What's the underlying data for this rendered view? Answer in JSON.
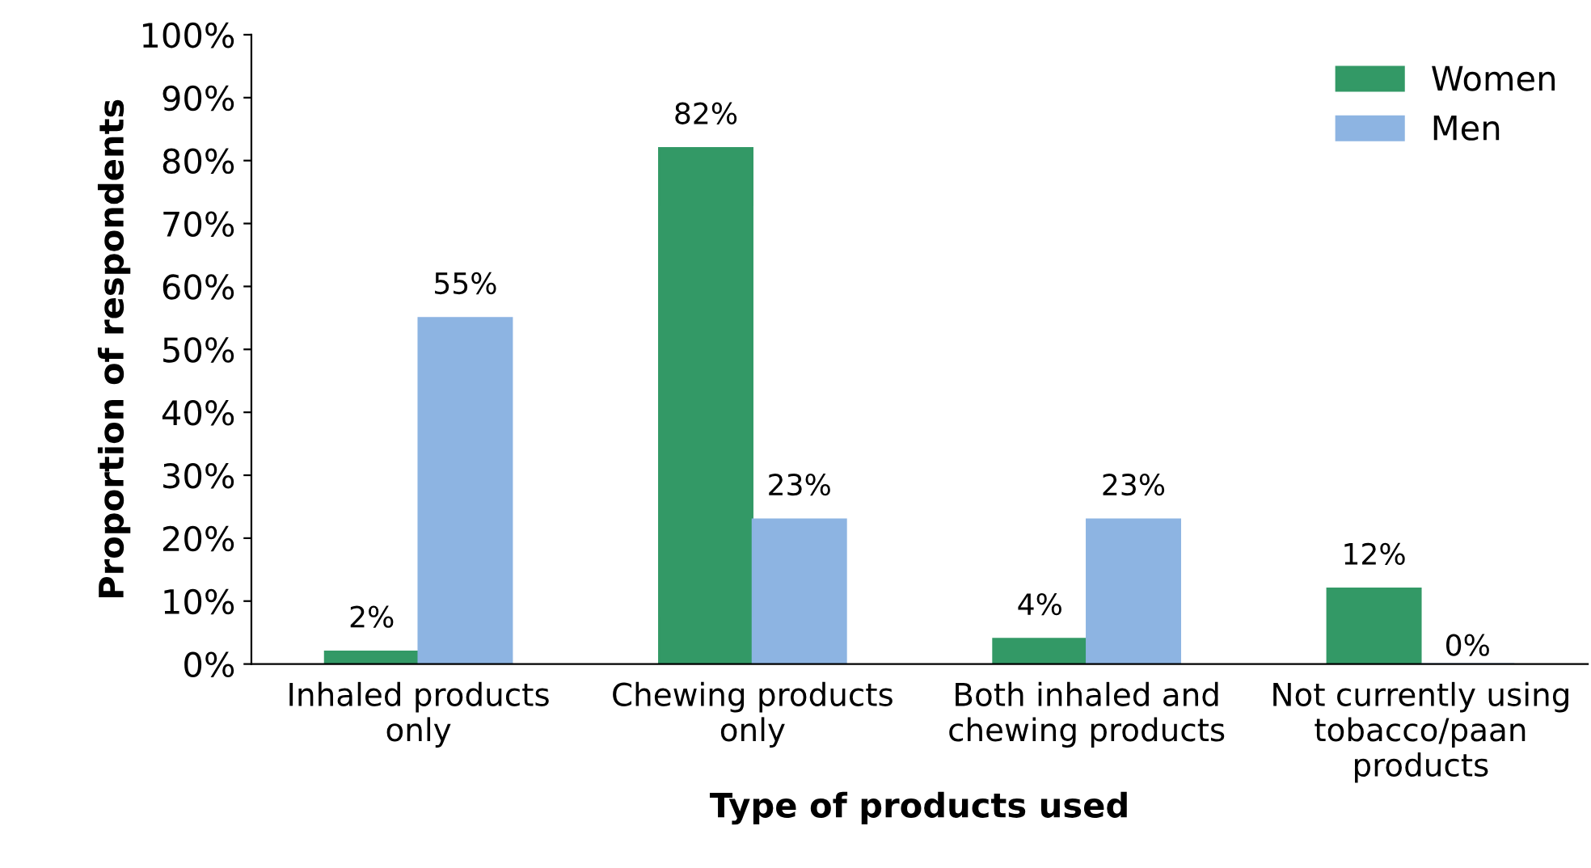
{
  "chart_data": {
    "type": "bar",
    "xlabel": "Type of products used",
    "ylabel": "Proportion of respondents",
    "categories": [
      "Inhaled products\nonly",
      "Chewing products\nonly",
      "Both inhaled and\nchewing products",
      "Not currently using\ntobacco/paan\nproducts"
    ],
    "series": [
      {
        "name": "Women",
        "color": "#339966",
        "values": [
          2,
          82,
          4,
          12
        ],
        "value_labels": [
          "2%",
          "82%",
          "4%",
          "12%"
        ]
      },
      {
        "name": "Men",
        "color": "#8db4e2",
        "values": [
          55,
          23,
          23,
          0
        ],
        "value_labels": [
          "55%",
          "23%",
          "23%",
          "0%"
        ]
      }
    ],
    "ylim": [
      0,
      100
    ],
    "yticks": [
      {
        "value": 0,
        "label": "0%"
      },
      {
        "value": 10,
        "label": "10%"
      },
      {
        "value": 20,
        "label": "20%"
      },
      {
        "value": 30,
        "label": "30%"
      },
      {
        "value": 40,
        "label": "40%"
      },
      {
        "value": 50,
        "label": "50%"
      },
      {
        "value": 60,
        "label": "60%"
      },
      {
        "value": 70,
        "label": "70%"
      },
      {
        "value": 80,
        "label": "80%"
      },
      {
        "value": 90,
        "label": "90%"
      },
      {
        "value": 100,
        "label": "100%"
      }
    ],
    "grid": false,
    "legend": "top right"
  }
}
